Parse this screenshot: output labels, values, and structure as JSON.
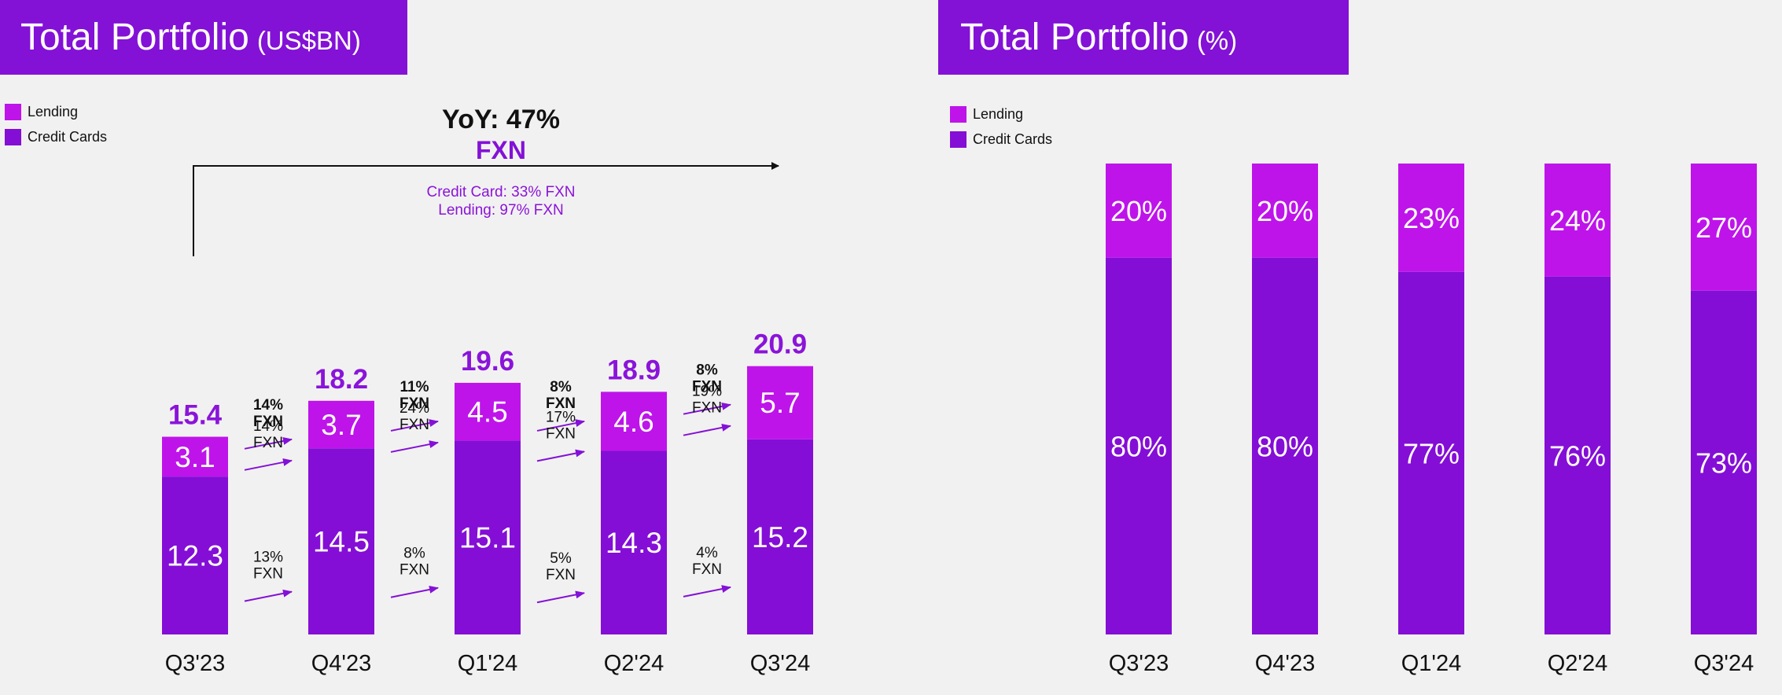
{
  "colors": {
    "lending": "#be14ea",
    "credit_cards": "#840ed6",
    "header": "#8311d6",
    "total_label": "#8a14d9",
    "arrow": "#8311d6"
  },
  "left_header": {
    "title": "Total Portfolio",
    "unit": "(US$BN)"
  },
  "right_header": {
    "title": "Total Portfolio",
    "unit": "(%)"
  },
  "legend": {
    "lending": "Lending",
    "credit_cards": "Credit Cards"
  },
  "yoy": {
    "title": "YoY: 47%",
    "fxn": "FXN",
    "credit_card_line": "Credit Card: 33% FXN",
    "lending_line": "Lending: 97% FXN"
  },
  "chart_data": [
    {
      "type": "bar",
      "stacked": true,
      "categories": [
        "Q3'23",
        "Q4'23",
        "Q1'24",
        "Q2'24",
        "Q3'24"
      ],
      "series": [
        {
          "name": "Credit Cards",
          "values": [
            12.3,
            14.5,
            15.1,
            14.3,
            15.2
          ]
        },
        {
          "name": "Lending",
          "values": [
            3.1,
            3.7,
            4.5,
            4.6,
            5.7
          ]
        }
      ],
      "totals": [
        15.4,
        18.2,
        19.6,
        18.9,
        20.9
      ],
      "title": "Total Portfolio (US$BN)",
      "growth": [
        {
          "total": [
            "14%",
            "FXN"
          ],
          "lending": [
            "14%",
            "FXN"
          ],
          "credit_cards": [
            "13%",
            "FXN"
          ]
        },
        {
          "total": [
            "11%",
            "FXN"
          ],
          "lending": [
            "24%",
            "FXN"
          ],
          "credit_cards": [
            "8%",
            "FXN"
          ]
        },
        {
          "total": [
            "8%",
            "FXN"
          ],
          "lending": [
            "17%",
            "FXN"
          ],
          "credit_cards": [
            "5%",
            "FXN"
          ]
        },
        {
          "total": [
            "8%",
            "FXN"
          ],
          "lending": [
            "19%",
            "FXN"
          ],
          "credit_cards": [
            "4%",
            "FXN"
          ]
        }
      ],
      "legend_position": "top-left"
    },
    {
      "type": "bar",
      "stacked": true,
      "percent": true,
      "categories": [
        "Q3'23",
        "Q4'23",
        "Q1'24",
        "Q2'24",
        "Q3'24"
      ],
      "series": [
        {
          "name": "Credit Cards",
          "values": [
            80,
            80,
            77,
            76,
            73
          ]
        },
        {
          "name": "Lending",
          "values": [
            20,
            20,
            23,
            24,
            27
          ]
        }
      ],
      "ylim": [
        0,
        100
      ],
      "title": "Total Portfolio (%)",
      "legend_position": "top-left"
    }
  ]
}
